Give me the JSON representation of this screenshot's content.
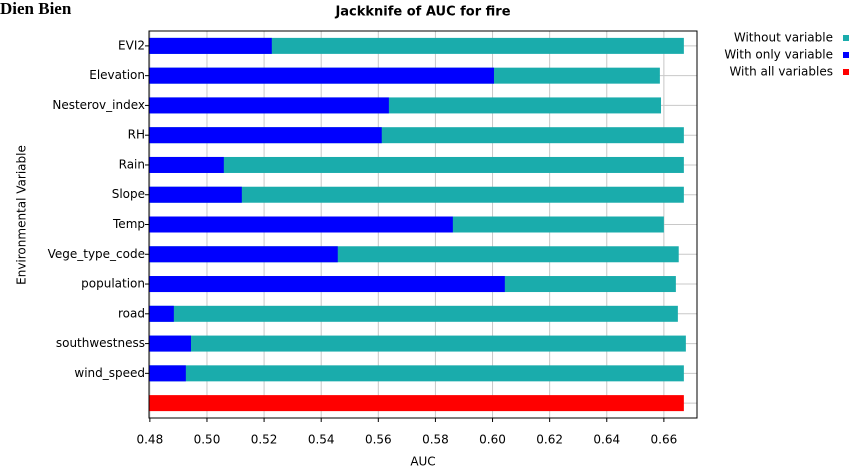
{
  "corner_label": "Dien Bien",
  "chart_data": {
    "type": "hbar-overlay",
    "title": "Jackknife of AUC for fire",
    "xlabel": "AUC",
    "ylabel": "Environmental Variable",
    "categories": [
      "EVI2",
      "Elevation",
      "Nesterov_index",
      "RH",
      "Rain",
      "Slope",
      "Temp",
      "Vege_type_code",
      "population",
      "road",
      "southwestness",
      "wind_speed",
      null
    ],
    "series": [
      {
        "name": "Without variable",
        "color": "#1aacac",
        "values": [
          0.667,
          0.6586,
          0.659,
          0.667,
          0.667,
          0.667,
          0.66,
          0.6652,
          0.6642,
          0.6649,
          0.6677,
          0.667,
          null
        ]
      },
      {
        "name": "With only variable",
        "color": "#0000ff",
        "values": [
          0.5227,
          0.6005,
          0.5637,
          0.5612,
          0.5059,
          0.5122,
          0.5861,
          0.5458,
          0.6043,
          0.4884,
          0.4944,
          0.4926,
          null
        ]
      },
      {
        "name": "With all variables",
        "color": "#ff0000",
        "values": [
          null,
          null,
          null,
          null,
          null,
          null,
          null,
          null,
          null,
          null,
          null,
          null,
          0.667
        ]
      }
    ],
    "xlim": [
      0.4797,
      0.6716
    ],
    "xticks": [
      0.48,
      {
        "value": 0.5,
        "label": "0.50"
      },
      0.52,
      0.54,
      0.56,
      0.58,
      {
        "value": 0.6,
        "label": "0.60"
      },
      0.62,
      0.64,
      0.66
    ],
    "grid": true,
    "legend": "outside-top-right"
  }
}
